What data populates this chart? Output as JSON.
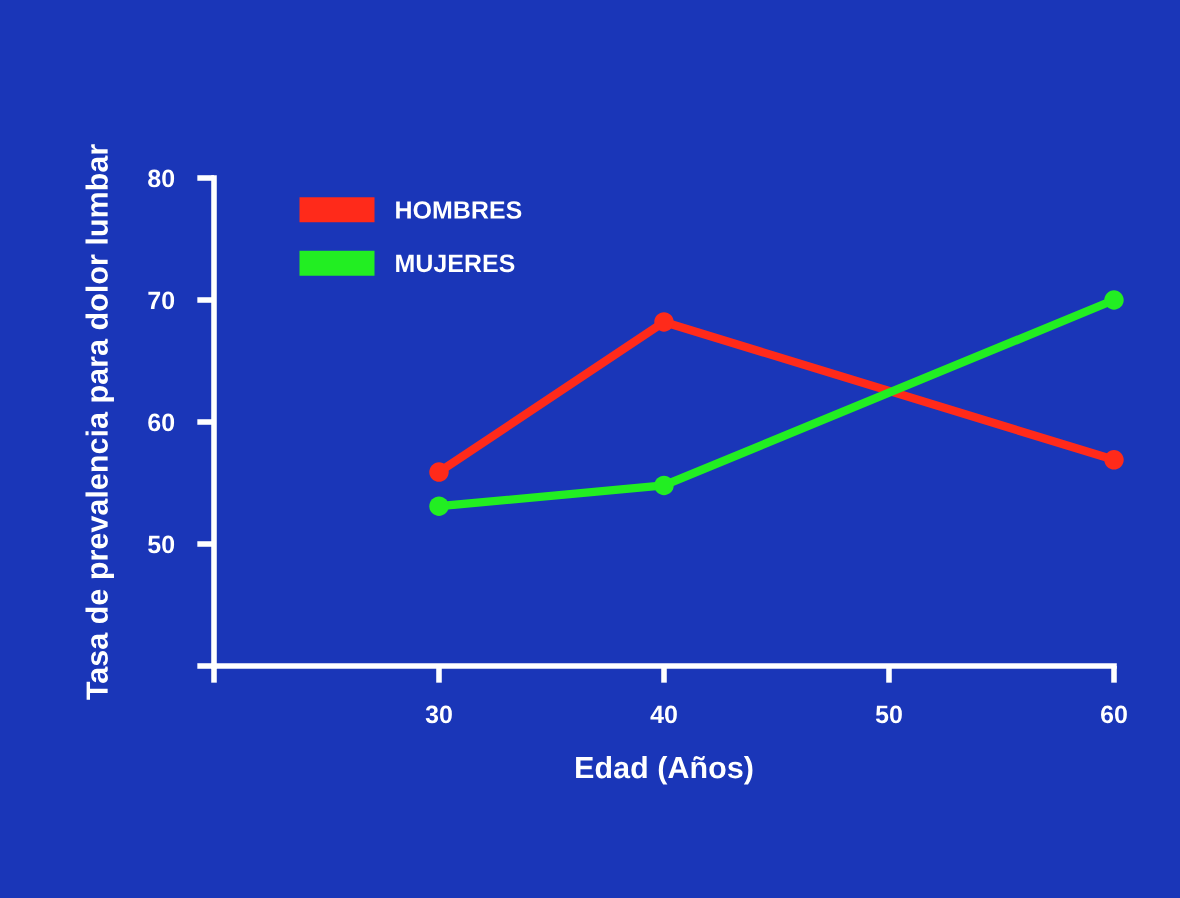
{
  "chart_data": {
    "type": "line",
    "xlabel": "Edad (Años)",
    "ylabel": "Tasa de prevalencia para dolor lumbar",
    "x": [
      30,
      40,
      60
    ],
    "series": [
      {
        "name": "HOMBRES",
        "color": "#ff2a1a",
        "values": [
          55.9,
          68.2,
          56.9
        ]
      },
      {
        "name": "MUJERES",
        "color": "#22ee22",
        "values": [
          53.1,
          54.8,
          70
        ]
      }
    ],
    "xlim": [
      20,
      60
    ],
    "xticks": [
      {
        "value": 20,
        "label": null
      },
      30,
      40,
      50,
      60
    ],
    "ylim": [
      40,
      80
    ],
    "yticks": [
      {
        "value": 40,
        "label": null
      },
      50,
      60,
      70,
      80
    ],
    "grid": false,
    "legend": "top left",
    "marker": "circle",
    "line_style": "solid"
  }
}
